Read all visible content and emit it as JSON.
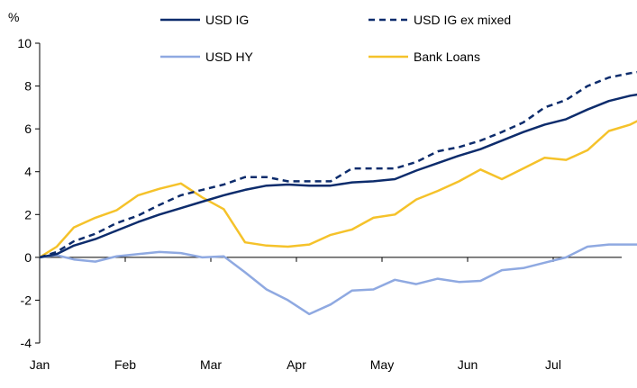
{
  "chart_data": {
    "type": "line",
    "unit_label": "%",
    "x_tick_labels": [
      "Jan",
      "Feb",
      "Mar",
      "Apr",
      "May",
      "Jun",
      "Jul"
    ],
    "x_range": [
      0,
      7.4
    ],
    "y_range": [
      -4,
      10
    ],
    "y_ticks": [
      -4,
      -2,
      0,
      2,
      4,
      6,
      8,
      10
    ],
    "y_tick_labels": [
      "-4",
      "-2",
      "0",
      "2",
      "4",
      "6",
      "8",
      "10"
    ],
    "grid": false,
    "zero_line": true,
    "legend_position": "top",
    "x": [
      0,
      0.2,
      0.4,
      0.65,
      0.9,
      1.15,
      1.4,
      1.65,
      1.9,
      2.15,
      2.4,
      2.65,
      2.9,
      3.15,
      3.4,
      3.65,
      3.9,
      4.15,
      4.4,
      4.65,
      4.9,
      5.15,
      5.4,
      5.65,
      5.9,
      6.15,
      6.4,
      6.65,
      6.9,
      7.15,
      7.4
    ],
    "series": [
      {
        "name": "USD IG",
        "color": "#0d2c6c",
        "dash": "solid",
        "values": [
          0,
          0.15,
          0.55,
          0.85,
          1.25,
          1.65,
          2.0,
          2.3,
          2.6,
          2.9,
          3.15,
          3.35,
          3.4,
          3.35,
          3.35,
          3.5,
          3.55,
          3.65,
          4.05,
          4.4,
          4.75,
          5.05,
          5.45,
          5.85,
          6.2,
          6.45,
          6.9,
          7.3,
          7.55,
          7.7,
          7.75
        ]
      },
      {
        "name": "USD IG ex mixed",
        "color": "#0d2c6c",
        "dash": "dashed",
        "values": [
          0,
          0.25,
          0.75,
          1.1,
          1.6,
          1.95,
          2.45,
          2.9,
          3.15,
          3.4,
          3.75,
          3.75,
          3.55,
          3.55,
          3.55,
          4.15,
          4.15,
          4.15,
          4.45,
          4.95,
          5.15,
          5.45,
          5.85,
          6.3,
          7.0,
          7.35,
          8.0,
          8.4,
          8.6,
          8.75,
          8.8
        ]
      },
      {
        "name": "USD HY",
        "color": "#8fa9e1",
        "dash": "solid",
        "values": [
          0,
          0.1,
          -0.1,
          -0.2,
          0.05,
          0.15,
          0.25,
          0.2,
          0.0,
          0.05,
          -0.7,
          -1.5,
          -2.0,
          -2.65,
          -2.2,
          -1.55,
          -1.5,
          -1.05,
          -1.25,
          -1.0,
          -1.15,
          -1.1,
          -0.6,
          -0.5,
          -0.25,
          0.0,
          0.5,
          0.6,
          0.6,
          0.6,
          0.6
        ]
      },
      {
        "name": "Bank Loans",
        "color": "#f5c22a",
        "dash": "solid",
        "values": [
          0,
          0.5,
          1.4,
          1.85,
          2.2,
          2.9,
          3.2,
          3.45,
          2.8,
          2.25,
          0.7,
          0.55,
          0.5,
          0.6,
          1.05,
          1.3,
          1.85,
          2.0,
          2.7,
          3.1,
          3.55,
          4.1,
          3.65,
          4.15,
          4.65,
          4.55,
          5.0,
          5.9,
          6.2,
          6.7,
          6.7
        ]
      }
    ]
  }
}
